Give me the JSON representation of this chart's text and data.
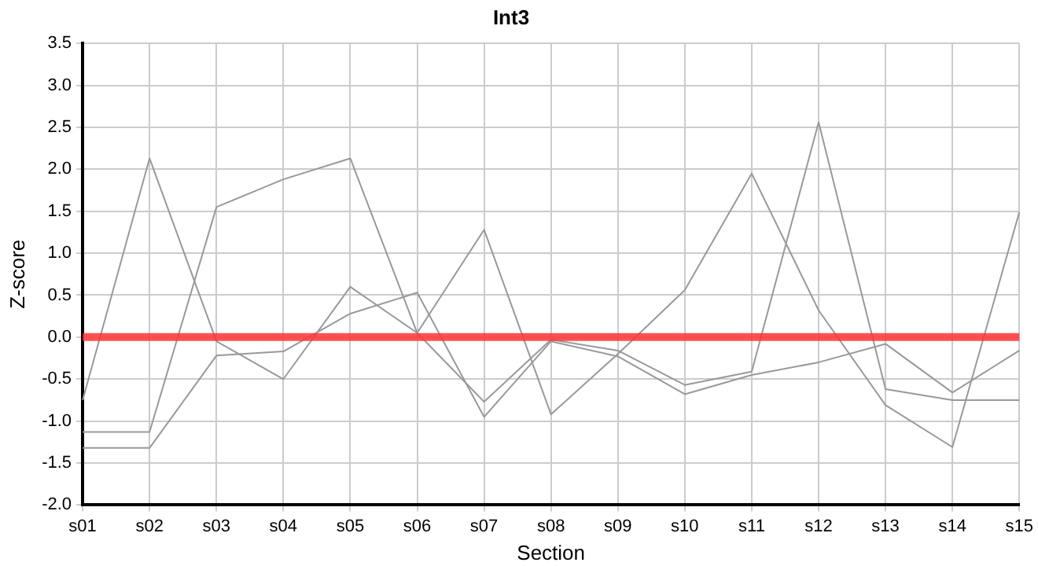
{
  "chart_data": {
    "type": "line",
    "title": "Int3",
    "xlabel": "Section",
    "ylabel": "Z-score",
    "categories": [
      "s01",
      "s02",
      "s03",
      "s04",
      "s05",
      "s06",
      "s07",
      "s08",
      "s09",
      "s10",
      "s11",
      "s12",
      "s13",
      "s14",
      "s15"
    ],
    "series": [
      {
        "color": "#999999",
        "values": [
          -0.75,
          2.13,
          -0.05,
          -0.5,
          0.6,
          0.05,
          -0.77,
          -0.03,
          -0.16,
          -0.57,
          -0.41,
          2.56,
          -0.62,
          -0.75,
          -0.75
        ]
      },
      {
        "color": "#999999",
        "values": [
          -1.13,
          -1.13,
          1.55,
          1.88,
          2.13,
          0.05,
          1.28,
          -0.92,
          -0.2,
          0.56,
          1.95,
          0.32,
          -0.81,
          -1.31,
          1.49
        ]
      },
      {
        "color": "#999999",
        "values": [
          -1.32,
          -1.32,
          -0.22,
          -0.17,
          0.28,
          0.53,
          -0.95,
          -0.05,
          -0.23,
          -0.68,
          -0.45,
          -0.3,
          -0.08,
          -0.66,
          -0.16
        ]
      }
    ],
    "ylim": [
      -2.0,
      3.5
    ],
    "yticks": [
      {
        "value": -2,
        "label": "-2.0"
      },
      {
        "value": -1.5,
        "label": "-1.5"
      },
      {
        "value": -1,
        "label": "-1.0"
      },
      {
        "value": -0.5,
        "label": "-0.5"
      },
      {
        "value": 0,
        "label": "0.0"
      },
      {
        "value": 0.5,
        "label": "0.5"
      },
      {
        "value": 1,
        "label": "1.0"
      },
      {
        "value": 1.5,
        "label": "1.5"
      },
      {
        "value": 2,
        "label": "2.0"
      },
      {
        "value": 2.5,
        "label": "2.5"
      },
      {
        "value": 3,
        "label": "3.0"
      },
      {
        "value": 3.5,
        "label": "3.5"
      }
    ],
    "ref_lines": [
      {
        "axis": "y",
        "value": 0,
        "color": "#ff3333"
      }
    ],
    "grid": true,
    "legend": false,
    "marker": "none",
    "line_style": "solid"
  }
}
